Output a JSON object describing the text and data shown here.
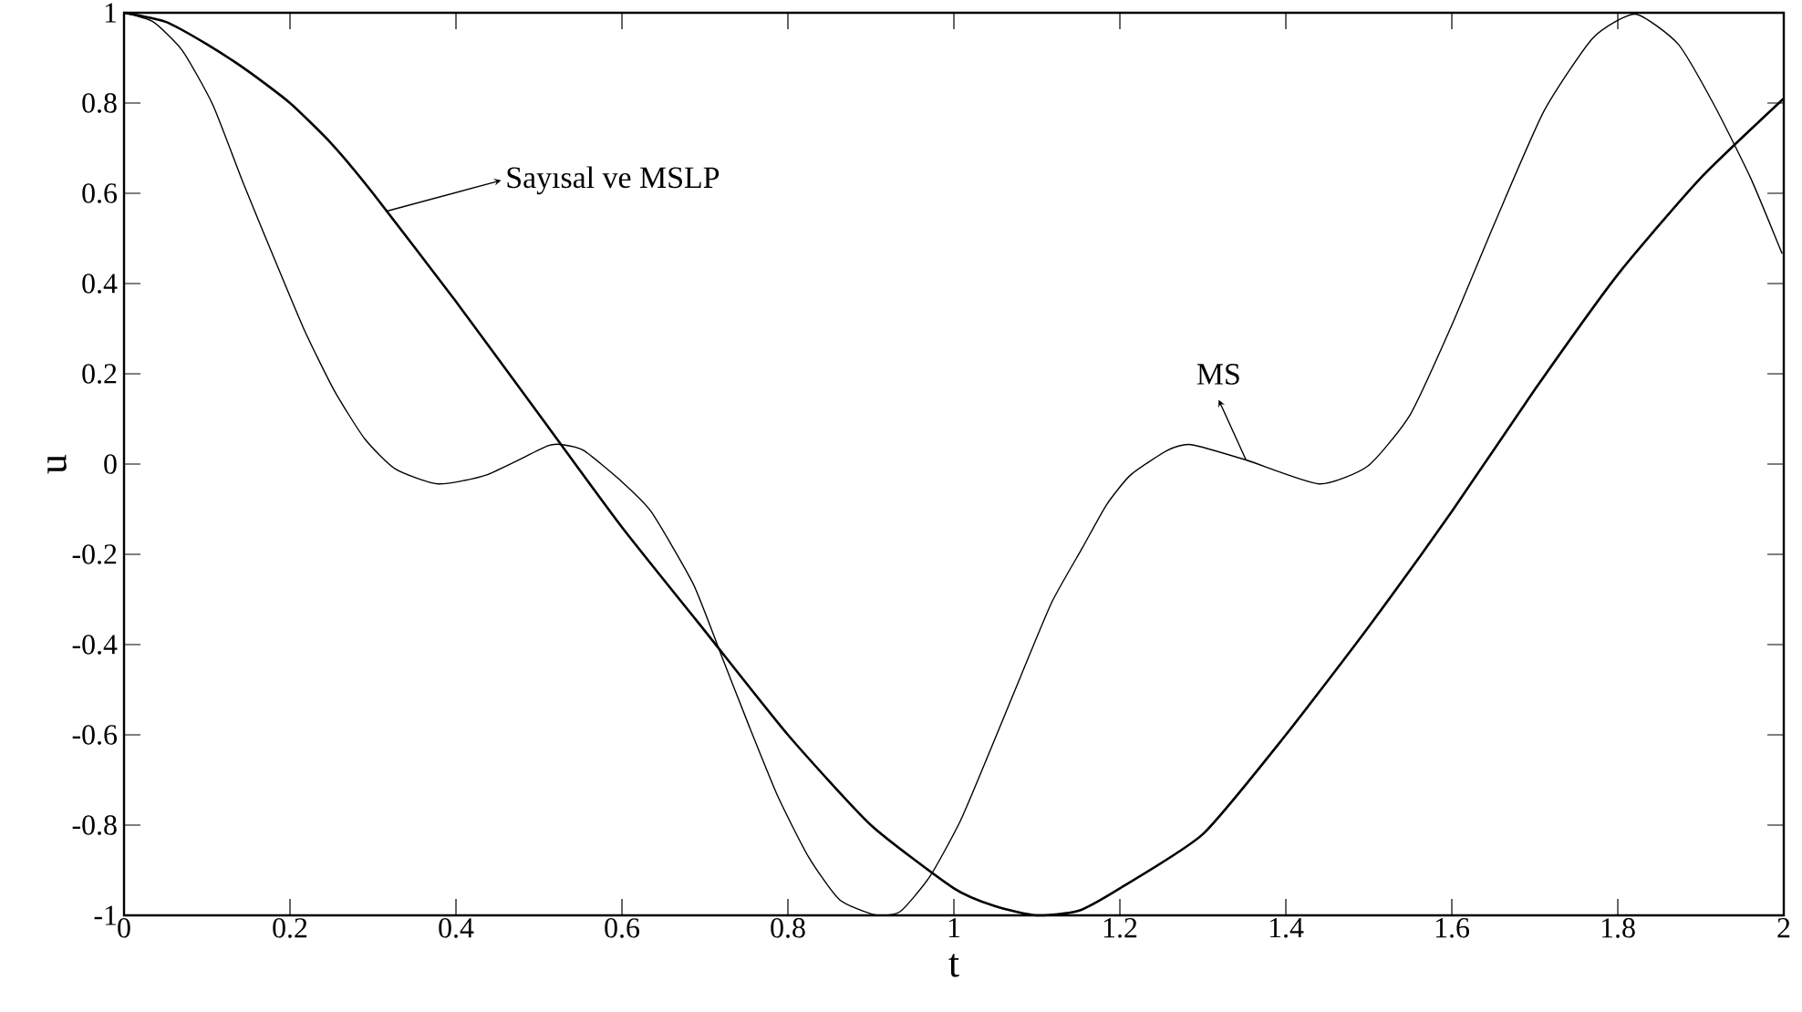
{
  "chart_data": {
    "type": "line",
    "xlabel": "t",
    "ylabel": "u",
    "xlim": [
      0,
      2
    ],
    "ylim": [
      -1,
      1
    ],
    "xticks": [
      0,
      0.2,
      0.4,
      0.6,
      0.8,
      1,
      1.2,
      1.4,
      1.6,
      1.8,
      2
    ],
    "yticks": [
      -1,
      -0.8,
      -0.6,
      -0.4,
      -0.2,
      0,
      0.2,
      0.4,
      0.6,
      0.8,
      1
    ],
    "series": [
      {
        "color": "#000000",
        "x": [
          0,
          0.05,
          0.1,
          0.15,
          0.2,
          0.25,
          0.3,
          0.4,
          0.5,
          0.6,
          0.7,
          0.8,
          0.9,
          1.0,
          1.05,
          1.1,
          1.15,
          1.2,
          1.3,
          1.4,
          1.5,
          1.6,
          1.7,
          1.8,
          1.9,
          2.0
        ],
        "values": [
          1,
          0.98,
          0.93,
          0.87,
          0.8,
          0.71,
          0.6,
          0.36,
          0.11,
          -0.14,
          -0.37,
          -0.6,
          -0.8,
          -0.94,
          -0.98,
          -1.0,
          -0.99,
          -0.94,
          -0.82,
          -0.6,
          -0.36,
          -0.105,
          0.165,
          0.42,
          0.634,
          0.81
        ]
      },
      {
        "color": "#000000",
        "x": [
          0,
          0.035,
          0.07,
          0.107,
          0.144,
          0.18,
          0.217,
          0.253,
          0.29,
          0.327,
          0.378,
          0.437,
          0.51,
          0.528,
          0.554,
          0.598,
          0.635,
          0.686,
          0.719,
          0.752,
          0.788,
          0.825,
          0.862,
          0.905,
          0.935,
          0.971,
          1.008,
          1.045,
          1.081,
          1.118,
          1.155,
          1.184,
          1.213,
          1.257,
          1.286,
          1.352,
          1.44,
          1.499,
          1.55,
          1.601,
          1.653,
          1.711,
          1.77,
          1.821,
          1.873,
          1.916,
          1.96,
          1.998
        ],
        "values": [
          1,
          0.98,
          0.917,
          0.796,
          0.621,
          0.46,
          0.298,
          0.164,
          0.056,
          -0.011,
          -0.044,
          -0.024,
          0.04,
          0.043,
          0.03,
          -0.036,
          -0.105,
          -0.266,
          -0.42,
          -0.575,
          -0.737,
          -0.871,
          -0.965,
          -0.999,
          -0.992,
          -0.914,
          -0.79,
          -0.629,
          -0.468,
          -0.306,
          -0.185,
          -0.09,
          -0.024,
          0.03,
          0.043,
          0.009,
          -0.044,
          -0.004,
          0.11,
          0.312,
          0.54,
          0.782,
          0.944,
          0.997,
          0.93,
          0.796,
          0.634,
          0.466
        ]
      }
    ],
    "annotations": [
      {
        "text": "Sayısal ve MSLP",
        "x": 0.316,
        "y": 0.56
      },
      {
        "text": "MS",
        "x": 1.352,
        "y": 0.009
      }
    ]
  }
}
